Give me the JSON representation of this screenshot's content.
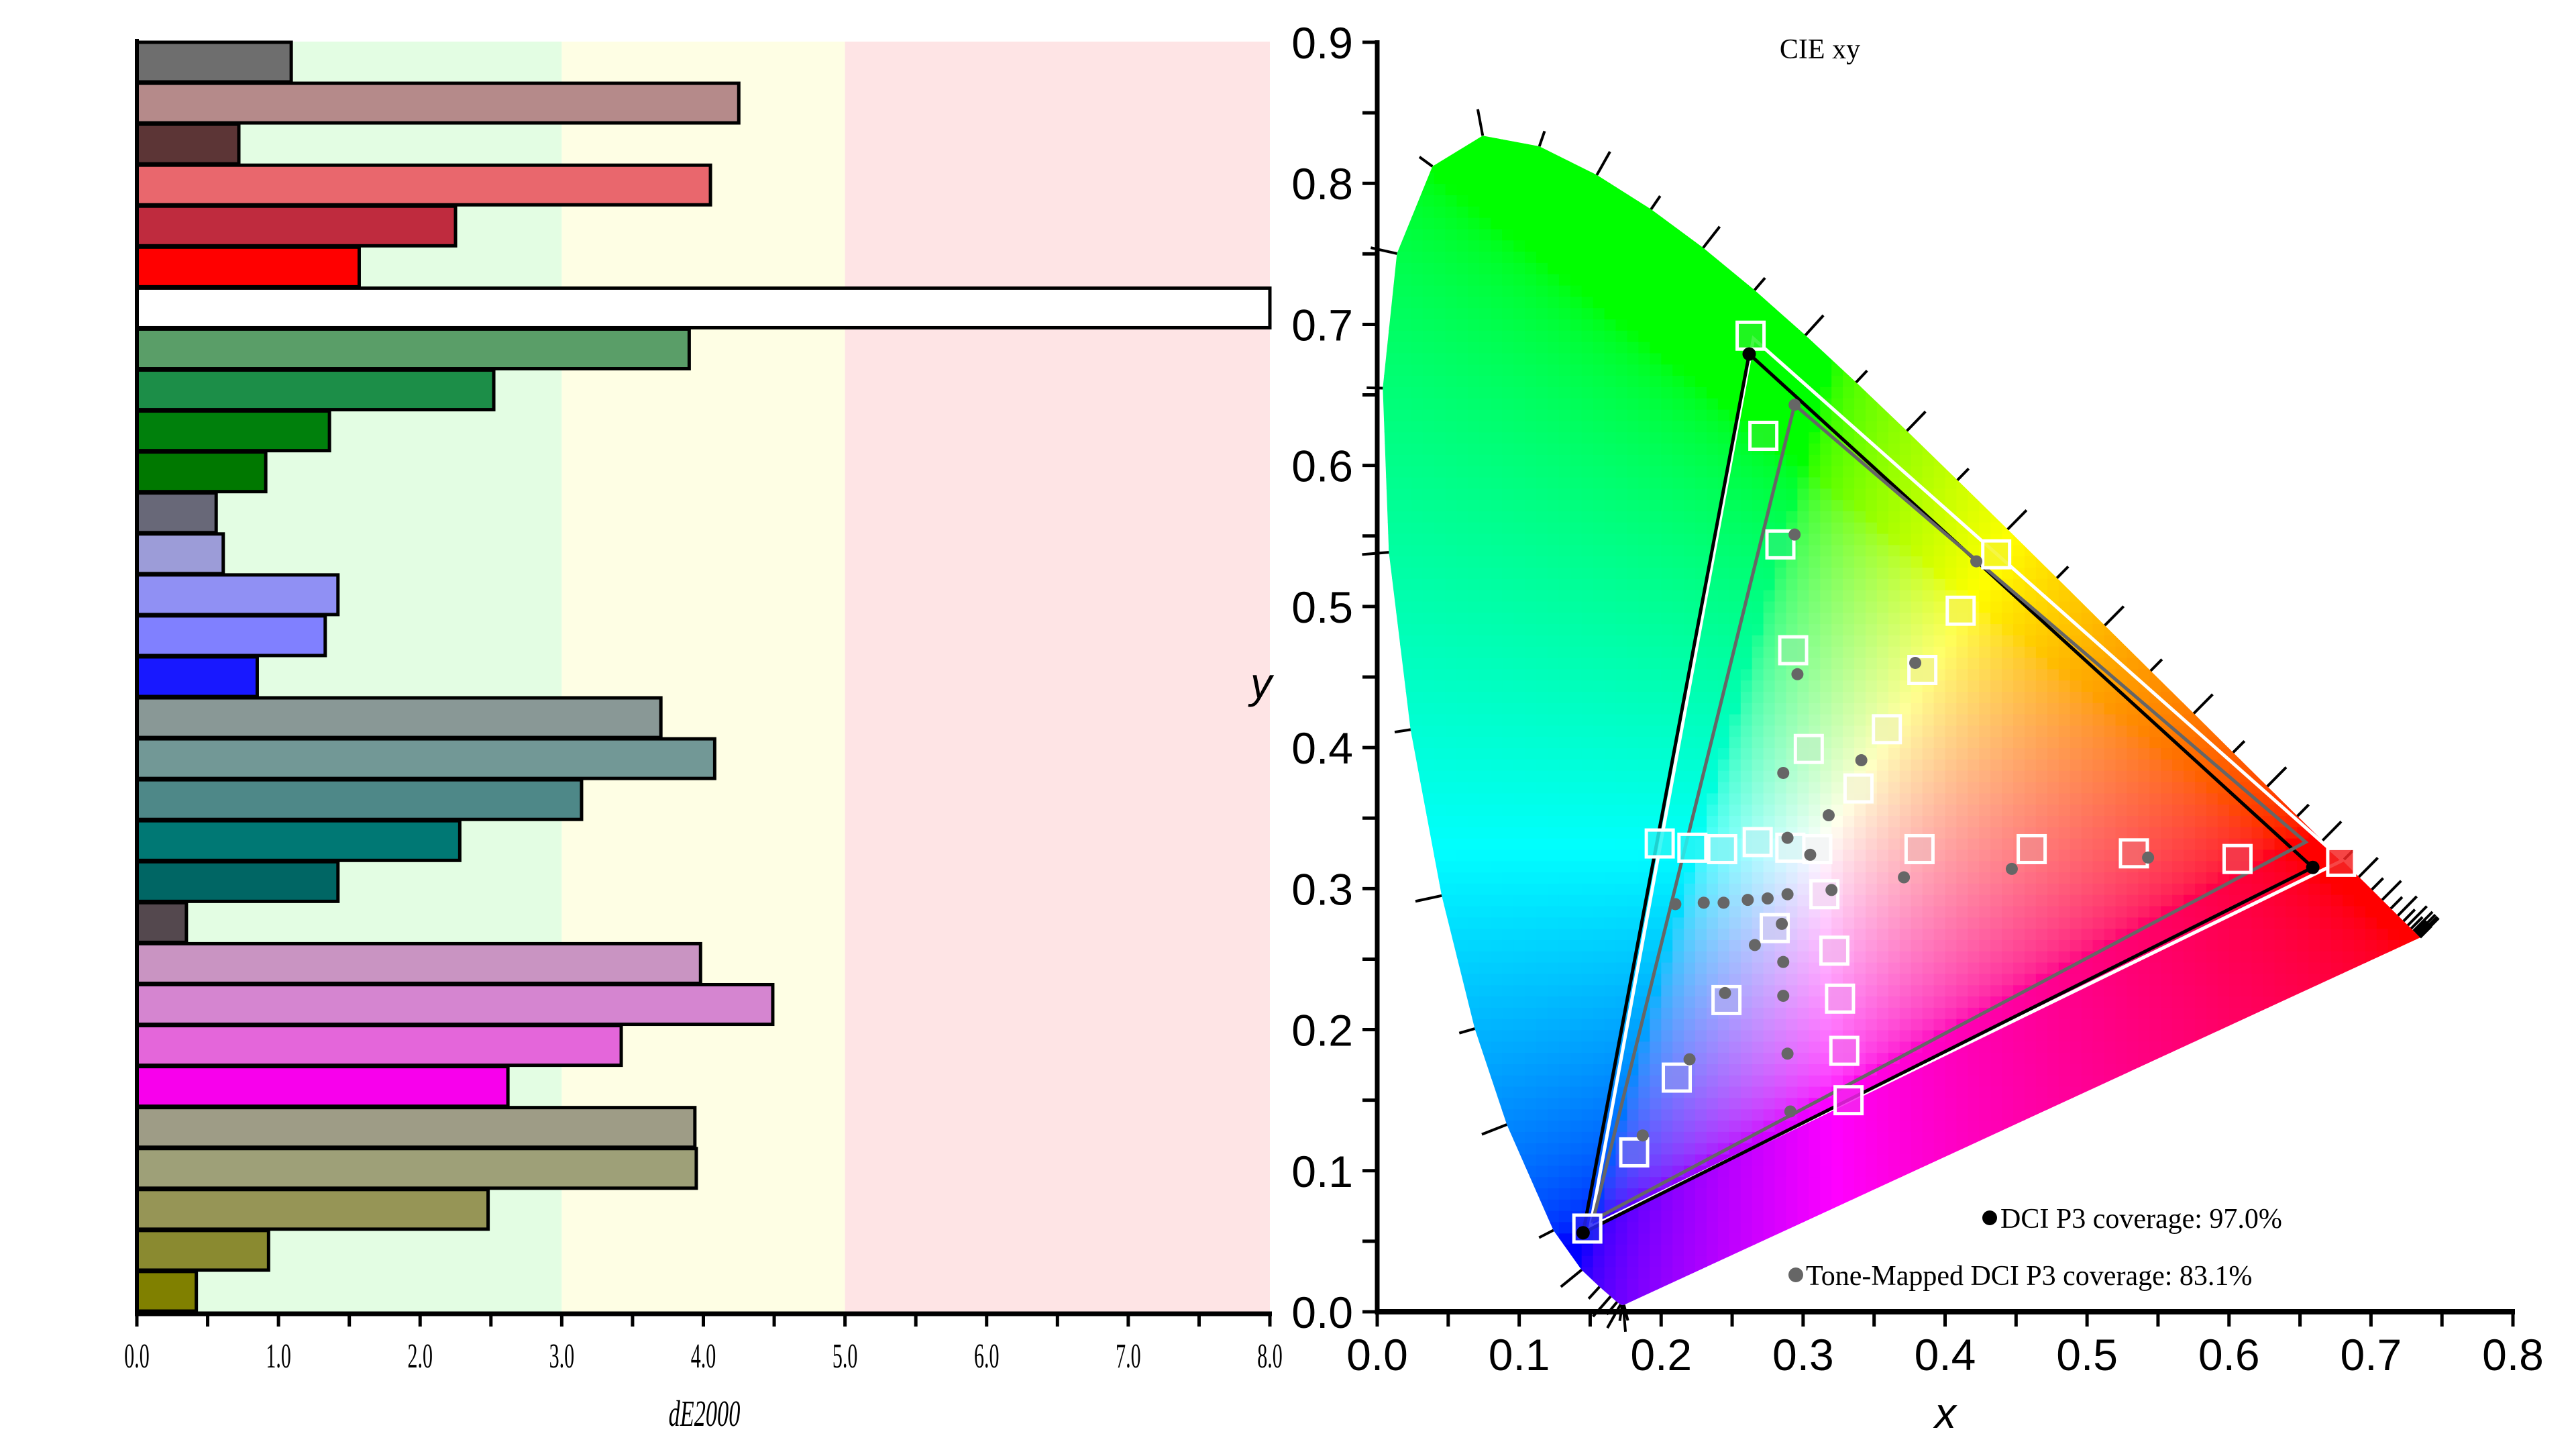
{
  "chart_data": [
    {
      "type": "bar",
      "orientation": "horizontal",
      "xlabel": "dE2000",
      "xlim": [
        0,
        8
      ],
      "xticks": [
        "0.0",
        "1.0",
        "2.0",
        "3.0",
        "4.0",
        "5.0",
        "6.0",
        "7.0",
        "8.0"
      ],
      "zones": [
        {
          "from": 0,
          "to": 3,
          "color": "#e3fde3"
        },
        {
          "from": 3,
          "to": 5,
          "color": "#fefee4"
        },
        {
          "from": 5,
          "to": 8,
          "color": "#fee4e5"
        }
      ],
      "bars": [
        {
          "value": 1.09,
          "color": "#6e6e6e"
        },
        {
          "value": 4.25,
          "color": "#b58a8a"
        },
        {
          "value": 0.72,
          "color": "#5c3536"
        },
        {
          "value": 4.05,
          "color": "#e9676d"
        },
        {
          "value": 2.25,
          "color": "#bf2b3e"
        },
        {
          "value": 1.57,
          "color": "#ff0000"
        },
        {
          "value": 8.0,
          "color": "#ffffff"
        },
        {
          "value": 3.9,
          "color": "#5a9e68"
        },
        {
          "value": 2.52,
          "color": "#1c8e48"
        },
        {
          "value": 1.36,
          "color": "#00800c"
        },
        {
          "value": 0.91,
          "color": "#007800"
        },
        {
          "value": 0.56,
          "color": "#686878"
        },
        {
          "value": 0.61,
          "color": "#9c9cd8"
        },
        {
          "value": 1.42,
          "color": "#9090f4"
        },
        {
          "value": 1.33,
          "color": "#8080ff"
        },
        {
          "value": 0.85,
          "color": "#1818ff"
        },
        {
          "value": 3.7,
          "color": "#899896"
        },
        {
          "value": 4.08,
          "color": "#729896"
        },
        {
          "value": 3.14,
          "color": "#4e8888"
        },
        {
          "value": 2.28,
          "color": "#007874"
        },
        {
          "value": 1.42,
          "color": "#006664"
        },
        {
          "value": 0.35,
          "color": "#54484e"
        },
        {
          "value": 3.98,
          "color": "#c994c2"
        },
        {
          "value": 4.49,
          "color": "#d585d0"
        },
        {
          "value": 3.42,
          "color": "#e466da"
        },
        {
          "value": 2.62,
          "color": "#f800ec"
        },
        {
          "value": 3.94,
          "color": "#9e9c86"
        },
        {
          "value": 3.95,
          "color": "#9ea078"
        },
        {
          "value": 2.48,
          "color": "#969556"
        },
        {
          "value": 0.93,
          "color": "#8a8a30"
        },
        {
          "value": 0.42,
          "color": "#808000"
        }
      ]
    },
    {
      "type": "scatter",
      "title": "CIE xy",
      "xlabel": "x",
      "ylabel": "y",
      "xlim": [
        0,
        0.8
      ],
      "ylim": [
        0,
        0.9
      ],
      "xticks": [
        "0.0",
        "0.1",
        "0.2",
        "0.3",
        "0.4",
        "0.5",
        "0.6",
        "0.7",
        "0.8"
      ],
      "yticks": [
        "0.0",
        "0.1",
        "0.2",
        "0.3",
        "0.4",
        "0.5",
        "0.6",
        "0.7",
        "0.8",
        "0.9"
      ],
      "legend": [
        {
          "label": "DCI P3 coverage: 97.0%",
          "color": "#000000"
        },
        {
          "label": "Tone-Mapped DCI P3 coverage: 83.1%",
          "color": "#666666"
        }
      ],
      "legend_position": "bottom-right",
      "triangles": {
        "target": {
          "color": "#ffffff",
          "points": [
            [
              0.265,
              0.69
            ],
            [
              0.68,
              0.32
            ],
            [
              0.15,
              0.06
            ]
          ]
        },
        "dci_p3": {
          "color": "#000000",
          "points": [
            [
              0.262,
              0.679
            ],
            [
              0.659,
              0.315
            ],
            [
              0.145,
              0.056
            ]
          ]
        },
        "tone_mapped": {
          "color": "#666666",
          "points": [
            [
              0.294,
              0.643
            ],
            [
              0.654,
              0.333
            ],
            [
              0.152,
              0.065
            ]
          ]
        }
      },
      "target_squares": [
        [
          0.263,
          0.692
        ],
        [
          0.272,
          0.621
        ],
        [
          0.284,
          0.544
        ],
        [
          0.293,
          0.469
        ],
        [
          0.304,
          0.399
        ],
        [
          0.31,
          0.328
        ],
        [
          0.315,
          0.296
        ],
        [
          0.322,
          0.256
        ],
        [
          0.326,
          0.222
        ],
        [
          0.329,
          0.185
        ],
        [
          0.332,
          0.15
        ],
        [
          0.436,
          0.537
        ],
        [
          0.411,
          0.497
        ],
        [
          0.384,
          0.455
        ],
        [
          0.359,
          0.413
        ],
        [
          0.339,
          0.371
        ],
        [
          0.382,
          0.328
        ],
        [
          0.461,
          0.328
        ],
        [
          0.533,
          0.325
        ],
        [
          0.606,
          0.321
        ],
        [
          0.679,
          0.319
        ],
        [
          0.199,
          0.332
        ],
        [
          0.222,
          0.329
        ],
        [
          0.243,
          0.328
        ],
        [
          0.268,
          0.333
        ],
        [
          0.291,
          0.329
        ],
        [
          0.28,
          0.272
        ],
        [
          0.246,
          0.221
        ],
        [
          0.211,
          0.166
        ],
        [
          0.181,
          0.113
        ],
        [
          0.148,
          0.059
        ]
      ],
      "measured_points": [
        [
          0.294,
          0.643
        ],
        [
          0.294,
          0.551
        ],
        [
          0.422,
          0.532
        ],
        [
          0.379,
          0.46
        ],
        [
          0.296,
          0.452
        ],
        [
          0.341,
          0.391
        ],
        [
          0.286,
          0.382
        ],
        [
          0.318,
          0.352
        ],
        [
          0.289,
          0.336
        ],
        [
          0.305,
          0.324
        ],
        [
          0.543,
          0.322
        ],
        [
          0.447,
          0.314
        ],
        [
          0.371,
          0.308
        ],
        [
          0.32,
          0.299
        ],
        [
          0.289,
          0.296
        ],
        [
          0.275,
          0.293
        ],
        [
          0.261,
          0.292
        ],
        [
          0.244,
          0.29
        ],
        [
          0.23,
          0.29
        ],
        [
          0.21,
          0.289
        ],
        [
          0.285,
          0.275
        ],
        [
          0.266,
          0.26
        ],
        [
          0.286,
          0.248
        ],
        [
          0.245,
          0.226
        ],
        [
          0.286,
          0.224
        ],
        [
          0.289,
          0.183
        ],
        [
          0.22,
          0.179
        ],
        [
          0.291,
          0.142
        ],
        [
          0.187,
          0.125
        ]
      ],
      "primary_points": [
        [
          0.262,
          0.679
        ],
        [
          0.659,
          0.315
        ],
        [
          0.145,
          0.056
        ]
      ],
      "spectral_locus": [
        [
          0.1741,
          0.005
        ],
        [
          0.1738,
          0.0049
        ],
        [
          0.1733,
          0.0048
        ],
        [
          0.1726,
          0.0048
        ],
        [
          0.1714,
          0.0051
        ],
        [
          0.1689,
          0.0069
        ],
        [
          0.1644,
          0.0109
        ],
        [
          0.1566,
          0.0177
        ],
        [
          0.144,
          0.0297
        ],
        [
          0.1241,
          0.0578
        ],
        [
          0.0913,
          0.1327
        ],
        [
          0.0687,
          0.2007
        ],
        [
          0.0454,
          0.295
        ],
        [
          0.0235,
          0.4127
        ],
        [
          0.0082,
          0.5384
        ],
        [
          0.0039,
          0.6548
        ],
        [
          0.0139,
          0.7502
        ],
        [
          0.0389,
          0.812
        ],
        [
          0.0743,
          0.8338
        ],
        [
          0.1142,
          0.8262
        ],
        [
          0.1547,
          0.8059
        ],
        [
          0.1929,
          0.7816
        ],
        [
          0.2296,
          0.7543
        ],
        [
          0.2658,
          0.7243
        ],
        [
          0.3016,
          0.6923
        ],
        [
          0.3373,
          0.6589
        ],
        [
          0.3731,
          0.6245
        ],
        [
          0.4087,
          0.5896
        ],
        [
          0.4441,
          0.5547
        ],
        [
          0.4788,
          0.5202
        ],
        [
          0.5125,
          0.4866
        ],
        [
          0.5448,
          0.4544
        ],
        [
          0.5752,
          0.4242
        ],
        [
          0.6029,
          0.3965
        ],
        [
          0.627,
          0.3725
        ],
        [
          0.6482,
          0.3514
        ],
        [
          0.6658,
          0.334
        ],
        [
          0.6801,
          0.3197
        ],
        [
          0.6915,
          0.3083
        ],
        [
          0.7006,
          0.2993
        ],
        [
          0.7079,
          0.292
        ],
        [
          0.714,
          0.2859
        ],
        [
          0.719,
          0.2809
        ],
        [
          0.723,
          0.277
        ],
        [
          0.726,
          0.274
        ],
        [
          0.7283,
          0.2717
        ],
        [
          0.73,
          0.27
        ],
        [
          0.7311,
          0.2689
        ],
        [
          0.732,
          0.268
        ],
        [
          0.7327,
          0.2673
        ],
        [
          0.7334,
          0.2666
        ],
        [
          0.734,
          0.266
        ],
        [
          0.7344,
          0.2656
        ],
        [
          0.7346,
          0.2654
        ],
        [
          0.7347,
          0.2653
        ]
      ]
    }
  ]
}
